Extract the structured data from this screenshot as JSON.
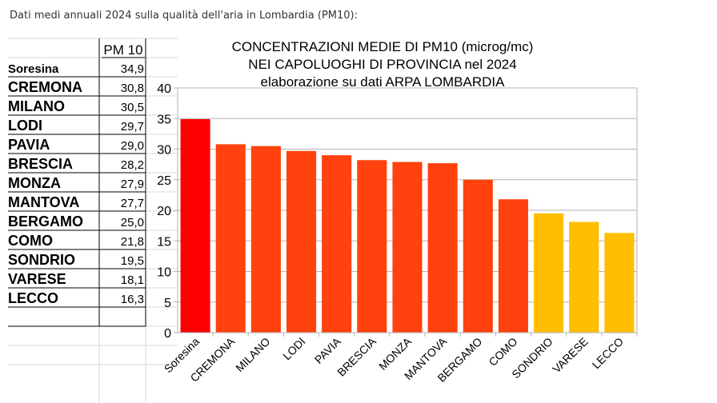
{
  "intro_text": "Dati medi annuali 2024 sulla qualità dell'aria in Lombardia (PM10):",
  "table": {
    "header": "PM 10",
    "rows": [
      {
        "name": "Soresina",
        "value": "34,9"
      },
      {
        "name": "CREMONA",
        "value": "30,8"
      },
      {
        "name": "MILANO",
        "value": "30,5"
      },
      {
        "name": "LODI",
        "value": "29,7"
      },
      {
        "name": "PAVIA",
        "value": "29,0"
      },
      {
        "name": "BRESCIA",
        "value": "28,2"
      },
      {
        "name": "MONZA",
        "value": "27,9"
      },
      {
        "name": "MANTOVA",
        "value": "27,7"
      },
      {
        "name": "BERGAMO",
        "value": "25,0"
      },
      {
        "name": "COMO",
        "value": "21,8"
      },
      {
        "name": "SONDRIO",
        "value": "19,5"
      },
      {
        "name": "VARESE",
        "value": "18,1"
      },
      {
        "name": "LECCO",
        "value": "16,3"
      }
    ]
  },
  "chart_data": {
    "type": "bar",
    "title_lines": [
      "CONCENTRAZIONI MEDIE DI  PM10 (microg/mc)",
      "NEI CAPOLUOGHI DI PROVINCIA nel 2024",
      "elaborazione su dati ARPA LOMBARDIA"
    ],
    "categories": [
      "Soresina",
      "CREMONA",
      "MILANO",
      "LODI",
      "PAVIA",
      "BRESCIA",
      "MONZA",
      "MANTOVA",
      "BERGAMO",
      "COMO",
      "SONDRIO",
      "VARESE",
      "LECCO"
    ],
    "values": [
      34.9,
      30.8,
      30.5,
      29.7,
      29.0,
      28.2,
      27.9,
      27.7,
      25.0,
      21.8,
      19.5,
      18.1,
      16.3
    ],
    "bar_colors": [
      "#ff0000",
      "#ff420e",
      "#ff420e",
      "#ff420e",
      "#ff420e",
      "#ff420e",
      "#ff420e",
      "#ff420e",
      "#ff420e",
      "#ff420e",
      "#ffbf00",
      "#ffbf00",
      "#ffbf00"
    ],
    "ylim": [
      0,
      40
    ],
    "yticks": [
      0,
      5,
      10,
      15,
      20,
      25,
      30,
      35,
      40
    ],
    "grid": true,
    "xlabel": "",
    "ylabel": ""
  }
}
